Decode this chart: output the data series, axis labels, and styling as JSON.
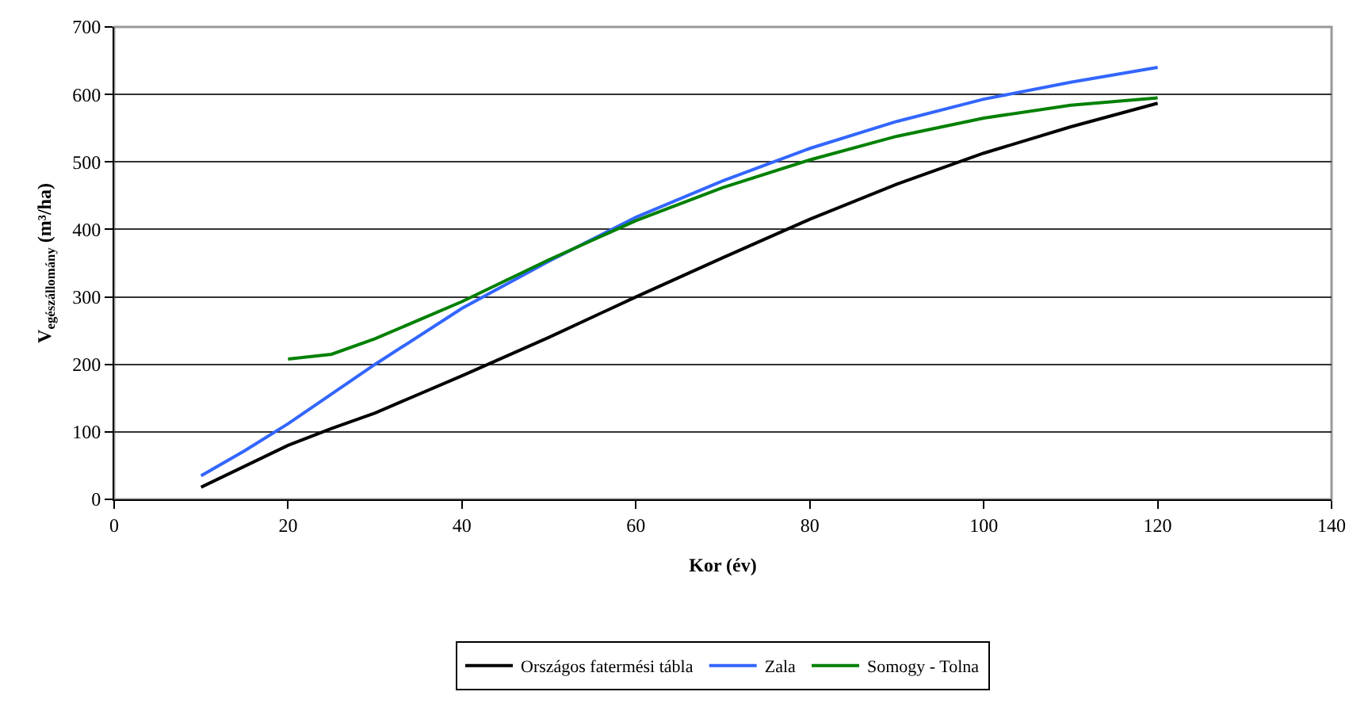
{
  "chart_data": {
    "type": "line",
    "xlabel": "Kor (év)",
    "ylabel": "V$_{egészállomány}$ (m³/ha)",
    "xlim": [
      0,
      140
    ],
    "xticks": [
      0,
      20,
      40,
      60,
      80,
      100,
      120,
      140
    ],
    "ylim": [
      0,
      700
    ],
    "yticks": [
      0,
      100,
      200,
      300,
      400,
      500,
      600,
      700
    ],
    "grid": "y",
    "legend": "bottom",
    "marker": "none",
    "line_style": "solid",
    "series": [
      {
        "name": "Országos fatermési tábla",
        "color": "#000000",
        "x": [
          10,
          20,
          25,
          30,
          40,
          50,
          60,
          70,
          80,
          90,
          100,
          110,
          120
        ],
        "values": [
          18,
          80,
          105,
          128,
          183,
          240,
          300,
          358,
          415,
          467,
          513,
          552,
          587
        ]
      },
      {
        "name": "Zala",
        "color": "#3366ff",
        "x": [
          10,
          15,
          20,
          30,
          40,
          50,
          60,
          70,
          80,
          90,
          100,
          110,
          120
        ],
        "values": [
          35,
          72,
          112,
          200,
          283,
          353,
          418,
          472,
          520,
          560,
          593,
          618,
          640
        ]
      },
      {
        "name": "Somogy - Tolna",
        "color": "#008000",
        "x": [
          20,
          25,
          30,
          40,
          50,
          60,
          70,
          80,
          90,
          100,
          110,
          120
        ],
        "values": [
          208,
          215,
          238,
          293,
          355,
          413,
          462,
          503,
          538,
          565,
          584,
          595
        ]
      }
    ]
  }
}
